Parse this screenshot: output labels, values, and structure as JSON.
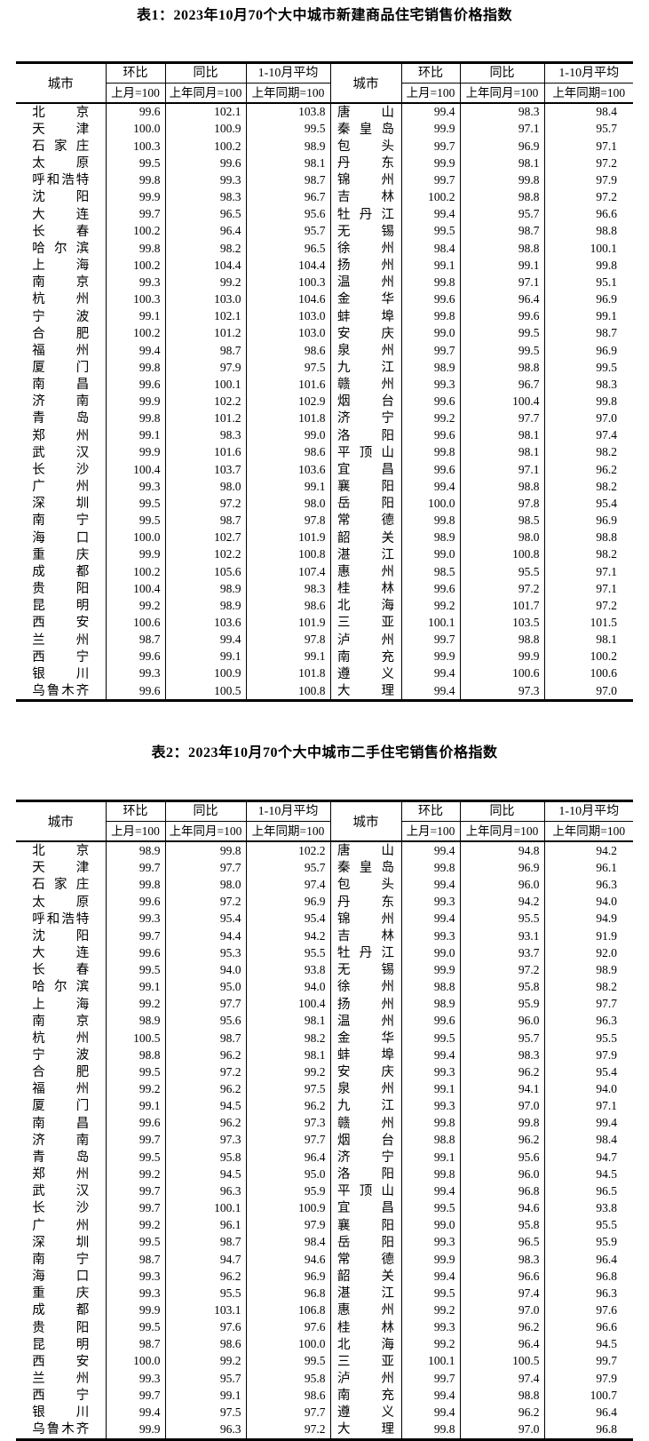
{
  "page": {
    "background_color": "#ffffff",
    "text_color": "#000000"
  },
  "tables": [
    {
      "title": "表1：2023年10月70个大中城市新建商品住宅销售价格指数",
      "columns": {
        "city": "城市",
        "mom": "环比",
        "yoy": "同比",
        "avg": "1-10月平均",
        "mom_base": "上月=100",
        "yoy_base": "上年同月=100",
        "avg_base": "上年同期=100"
      },
      "left_rows": [
        [
          "北京",
          "99.6",
          "102.1",
          "103.8"
        ],
        [
          "天津",
          "100.0",
          "100.9",
          "99.5"
        ],
        [
          "石家庄",
          "100.3",
          "100.2",
          "98.9"
        ],
        [
          "太原",
          "99.5",
          "99.6",
          "98.1"
        ],
        [
          "呼和浩特",
          "99.8",
          "99.3",
          "98.7"
        ],
        [
          "沈阳",
          "99.9",
          "98.3",
          "96.7"
        ],
        [
          "大连",
          "99.7",
          "96.5",
          "95.6"
        ],
        [
          "长春",
          "100.2",
          "96.4",
          "95.7"
        ],
        [
          "哈尔滨",
          "99.8",
          "98.2",
          "96.5"
        ],
        [
          "上海",
          "100.2",
          "104.4",
          "104.4"
        ],
        [
          "南京",
          "99.3",
          "99.2",
          "100.3"
        ],
        [
          "杭州",
          "100.3",
          "103.0",
          "104.6"
        ],
        [
          "宁波",
          "99.1",
          "102.1",
          "103.0"
        ],
        [
          "合肥",
          "100.2",
          "101.2",
          "103.0"
        ],
        [
          "福州",
          "99.4",
          "98.7",
          "98.6"
        ],
        [
          "厦门",
          "99.8",
          "97.9",
          "97.5"
        ],
        [
          "南昌",
          "99.6",
          "100.1",
          "101.6"
        ],
        [
          "济南",
          "99.9",
          "102.2",
          "102.9"
        ],
        [
          "青岛",
          "99.8",
          "101.2",
          "101.8"
        ],
        [
          "郑州",
          "99.1",
          "98.3",
          "99.0"
        ],
        [
          "武汉",
          "99.9",
          "101.6",
          "98.6"
        ],
        [
          "长沙",
          "100.4",
          "103.7",
          "103.6"
        ],
        [
          "广州",
          "99.3",
          "98.0",
          "99.1"
        ],
        [
          "深圳",
          "99.5",
          "97.2",
          "98.0"
        ],
        [
          "南宁",
          "99.5",
          "98.7",
          "97.8"
        ],
        [
          "海口",
          "100.0",
          "102.7",
          "101.9"
        ],
        [
          "重庆",
          "99.9",
          "102.2",
          "100.8"
        ],
        [
          "成都",
          "100.2",
          "105.6",
          "107.4"
        ],
        [
          "贵阳",
          "100.4",
          "98.9",
          "98.3"
        ],
        [
          "昆明",
          "99.2",
          "98.9",
          "98.6"
        ],
        [
          "西安",
          "100.6",
          "103.6",
          "101.9"
        ],
        [
          "兰州",
          "98.7",
          "99.4",
          "97.8"
        ],
        [
          "西宁",
          "99.6",
          "99.1",
          "99.1"
        ],
        [
          "银川",
          "99.3",
          "100.9",
          "101.8"
        ],
        [
          "乌鲁木齐",
          "99.6",
          "100.5",
          "100.8"
        ]
      ],
      "right_rows": [
        [
          "唐山",
          "99.4",
          "98.3",
          "98.4"
        ],
        [
          "秦皇岛",
          "99.9",
          "97.1",
          "95.7"
        ],
        [
          "包头",
          "99.7",
          "96.9",
          "97.1"
        ],
        [
          "丹东",
          "99.9",
          "98.1",
          "97.2"
        ],
        [
          "锦州",
          "99.7",
          "99.8",
          "97.9"
        ],
        [
          "吉林",
          "100.2",
          "98.8",
          "97.2"
        ],
        [
          "牡丹江",
          "99.4",
          "95.7",
          "96.6"
        ],
        [
          "无锡",
          "99.5",
          "98.7",
          "98.8"
        ],
        [
          "徐州",
          "98.4",
          "98.8",
          "100.1"
        ],
        [
          "扬州",
          "99.1",
          "99.1",
          "99.8"
        ],
        [
          "温州",
          "99.8",
          "97.1",
          "95.1"
        ],
        [
          "金华",
          "99.6",
          "96.4",
          "96.9"
        ],
        [
          "蚌埠",
          "99.8",
          "99.6",
          "99.1"
        ],
        [
          "安庆",
          "99.0",
          "99.5",
          "98.7"
        ],
        [
          "泉州",
          "99.7",
          "99.5",
          "96.9"
        ],
        [
          "九江",
          "98.9",
          "98.8",
          "99.5"
        ],
        [
          "赣州",
          "99.3",
          "96.7",
          "98.3"
        ],
        [
          "烟台",
          "99.6",
          "100.4",
          "99.8"
        ],
        [
          "济宁",
          "99.2",
          "97.7",
          "97.0"
        ],
        [
          "洛阳",
          "99.6",
          "98.1",
          "97.4"
        ],
        [
          "平顶山",
          "99.8",
          "98.1",
          "98.2"
        ],
        [
          "宜昌",
          "99.6",
          "97.1",
          "96.2"
        ],
        [
          "襄阳",
          "99.4",
          "98.8",
          "98.2"
        ],
        [
          "岳阳",
          "100.0",
          "97.8",
          "95.4"
        ],
        [
          "常德",
          "99.8",
          "98.5",
          "96.9"
        ],
        [
          "韶关",
          "98.9",
          "98.0",
          "98.8"
        ],
        [
          "湛江",
          "99.0",
          "100.8",
          "98.2"
        ],
        [
          "惠州",
          "98.5",
          "95.5",
          "97.1"
        ],
        [
          "桂林",
          "99.6",
          "97.2",
          "97.1"
        ],
        [
          "北海",
          "99.2",
          "101.7",
          "97.2"
        ],
        [
          "三亚",
          "100.1",
          "103.5",
          "101.5"
        ],
        [
          "泸州",
          "99.7",
          "98.8",
          "98.1"
        ],
        [
          "南充",
          "99.9",
          "99.9",
          "100.2"
        ],
        [
          "遵义",
          "99.4",
          "100.6",
          "100.6"
        ],
        [
          "大理",
          "99.4",
          "97.3",
          "97.0"
        ]
      ]
    },
    {
      "title": "表2：2023年10月70个大中城市二手住宅销售价格指数",
      "columns": {
        "city": "城市",
        "mom": "环比",
        "yoy": "同比",
        "avg": "1-10月平均",
        "mom_base": "上月=100",
        "yoy_base": "上年同月=100",
        "avg_base": "上年同期=100"
      },
      "left_rows": [
        [
          "北京",
          "98.9",
          "99.8",
          "102.2"
        ],
        [
          "天津",
          "99.7",
          "97.7",
          "95.7"
        ],
        [
          "石家庄",
          "99.8",
          "98.0",
          "97.4"
        ],
        [
          "太原",
          "99.6",
          "97.2",
          "96.9"
        ],
        [
          "呼和浩特",
          "99.3",
          "95.4",
          "95.4"
        ],
        [
          "沈阳",
          "99.7",
          "94.4",
          "94.2"
        ],
        [
          "大连",
          "99.6",
          "95.3",
          "95.5"
        ],
        [
          "长春",
          "99.5",
          "94.0",
          "93.8"
        ],
        [
          "哈尔滨",
          "99.1",
          "95.0",
          "94.0"
        ],
        [
          "上海",
          "99.2",
          "97.7",
          "100.4"
        ],
        [
          "南京",
          "98.9",
          "95.6",
          "98.1"
        ],
        [
          "杭州",
          "100.5",
          "98.7",
          "98.2"
        ],
        [
          "宁波",
          "98.8",
          "96.2",
          "98.1"
        ],
        [
          "合肥",
          "99.5",
          "97.2",
          "99.2"
        ],
        [
          "福州",
          "99.2",
          "96.2",
          "97.5"
        ],
        [
          "厦门",
          "99.1",
          "94.5",
          "96.2"
        ],
        [
          "南昌",
          "99.6",
          "96.2",
          "97.3"
        ],
        [
          "济南",
          "99.7",
          "97.3",
          "97.7"
        ],
        [
          "青岛",
          "99.5",
          "95.8",
          "96.4"
        ],
        [
          "郑州",
          "99.2",
          "94.5",
          "95.0"
        ],
        [
          "武汉",
          "99.7",
          "96.3",
          "95.9"
        ],
        [
          "长沙",
          "99.7",
          "100.1",
          "100.9"
        ],
        [
          "广州",
          "99.2",
          "96.1",
          "97.9"
        ],
        [
          "深圳",
          "99.5",
          "98.7",
          "98.4"
        ],
        [
          "南宁",
          "98.7",
          "94.7",
          "94.6"
        ],
        [
          "海口",
          "99.3",
          "96.2",
          "96.9"
        ],
        [
          "重庆",
          "99.3",
          "95.5",
          "96.8"
        ],
        [
          "成都",
          "99.9",
          "103.1",
          "106.8"
        ],
        [
          "贵阳",
          "99.5",
          "97.6",
          "97.6"
        ],
        [
          "昆明",
          "98.7",
          "98.6",
          "100.0"
        ],
        [
          "西安",
          "100.0",
          "99.2",
          "99.5"
        ],
        [
          "兰州",
          "99.3",
          "95.7",
          "95.8"
        ],
        [
          "西宁",
          "99.7",
          "99.1",
          "98.6"
        ],
        [
          "银川",
          "99.4",
          "97.5",
          "97.7"
        ],
        [
          "乌鲁木齐",
          "99.9",
          "96.3",
          "97.2"
        ]
      ],
      "right_rows": [
        [
          "唐山",
          "99.4",
          "94.8",
          "94.2"
        ],
        [
          "秦皇岛",
          "99.8",
          "96.9",
          "96.1"
        ],
        [
          "包头",
          "99.4",
          "96.0",
          "96.3"
        ],
        [
          "丹东",
          "99.3",
          "94.2",
          "94.0"
        ],
        [
          "锦州",
          "99.4",
          "95.5",
          "94.9"
        ],
        [
          "吉林",
          "99.3",
          "93.1",
          "91.9"
        ],
        [
          "牡丹江",
          "99.0",
          "93.7",
          "92.0"
        ],
        [
          "无锡",
          "99.9",
          "97.2",
          "98.9"
        ],
        [
          "徐州",
          "98.8",
          "95.8",
          "98.2"
        ],
        [
          "扬州",
          "98.9",
          "95.9",
          "97.7"
        ],
        [
          "温州",
          "99.6",
          "96.0",
          "96.3"
        ],
        [
          "金华",
          "99.5",
          "95.7",
          "95.5"
        ],
        [
          "蚌埠",
          "99.4",
          "98.3",
          "97.9"
        ],
        [
          "安庆",
          "99.3",
          "96.2",
          "95.4"
        ],
        [
          "泉州",
          "99.1",
          "94.1",
          "94.0"
        ],
        [
          "九江",
          "99.3",
          "97.0",
          "97.1"
        ],
        [
          "赣州",
          "99.8",
          "99.8",
          "99.4"
        ],
        [
          "烟台",
          "98.8",
          "96.2",
          "98.4"
        ],
        [
          "济宁",
          "99.1",
          "95.6",
          "94.7"
        ],
        [
          "洛阳",
          "99.8",
          "96.0",
          "94.5"
        ],
        [
          "平顶山",
          "99.4",
          "96.8",
          "96.5"
        ],
        [
          "宜昌",
          "99.5",
          "94.6",
          "93.8"
        ],
        [
          "襄阳",
          "99.0",
          "95.8",
          "95.5"
        ],
        [
          "岳阳",
          "99.3",
          "96.5",
          "95.9"
        ],
        [
          "常德",
          "99.9",
          "98.3",
          "96.4"
        ],
        [
          "韶关",
          "99.4",
          "96.6",
          "96.8"
        ],
        [
          "湛江",
          "99.5",
          "97.4",
          "96.3"
        ],
        [
          "惠州",
          "99.2",
          "97.0",
          "97.6"
        ],
        [
          "桂林",
          "99.3",
          "96.2",
          "96.6"
        ],
        [
          "北海",
          "99.2",
          "96.4",
          "94.5"
        ],
        [
          "三亚",
          "100.1",
          "100.5",
          "99.7"
        ],
        [
          "泸州",
          "99.7",
          "97.4",
          "97.9"
        ],
        [
          "南充",
          "99.4",
          "98.8",
          "100.7"
        ],
        [
          "遵义",
          "99.4",
          "96.2",
          "96.4"
        ],
        [
          "大理",
          "99.8",
          "97.0",
          "96.8"
        ]
      ]
    }
  ]
}
